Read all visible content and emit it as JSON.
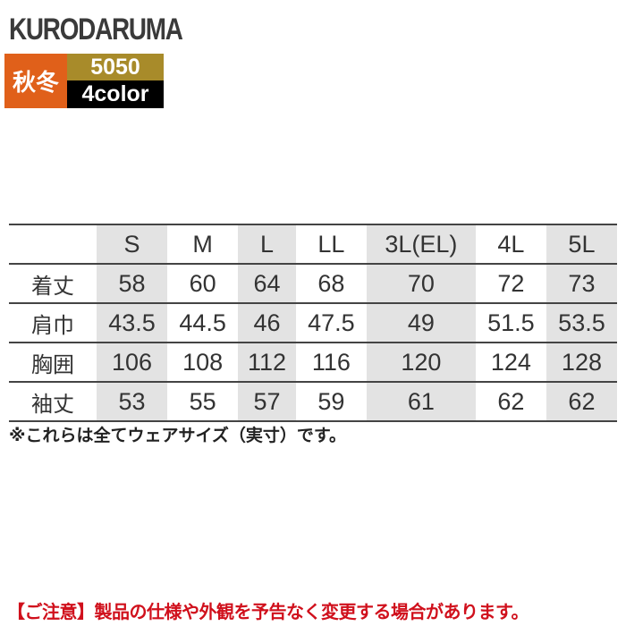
{
  "brand": "KURODARUMA",
  "season": "秋冬",
  "product_code": "5050",
  "color_count": "4color",
  "size_table": {
    "sizes": [
      "S",
      "M",
      "L",
      "LL",
      "3L(EL)",
      "4L",
      "5L"
    ],
    "rows": [
      {
        "label": "着丈",
        "values": [
          "58",
          "60",
          "64",
          "68",
          "70",
          "72",
          "73"
        ]
      },
      {
        "label": "肩巾",
        "values": [
          "43.5",
          "44.5",
          "46",
          "47.5",
          "49",
          "51.5",
          "53.5"
        ]
      },
      {
        "label": "胸囲",
        "values": [
          "106",
          "108",
          "112",
          "116",
          "120",
          "124",
          "128"
        ]
      },
      {
        "label": "袖丈",
        "values": [
          "53",
          "55",
          "57",
          "59",
          "61",
          "62",
          "62"
        ]
      }
    ]
  },
  "note": "※これらは全てウェアサイズ（実寸）です。",
  "caution": "【ご注意】製品の仕様や外観を予告なく変更する場合があります。"
}
